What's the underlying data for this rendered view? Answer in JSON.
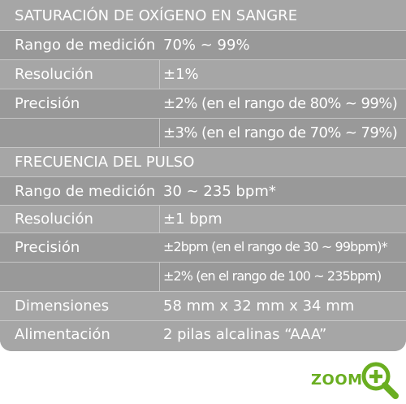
{
  "sections": [
    {
      "title": "SATURACIÓN DE OXÍGENO EN SANGRE",
      "rows": [
        {
          "label": "Rango de medición",
          "value": "70% ~ 99%"
        },
        {
          "label": "Resolución",
          "value": "±1%"
        },
        {
          "label": "Precisión",
          "value": "±2% (en el rango de 80% ~ 99%)"
        },
        {
          "label": "",
          "value": "±3% (en el rango de 70% ~ 79%)"
        }
      ]
    },
    {
      "title": "FRECUENCIA DEL PULSO",
      "rows": [
        {
          "label": "Rango de medición",
          "value": "30 ~ 235 bpm*"
        },
        {
          "label": "Resolución",
          "value": "±1 bpm"
        },
        {
          "label": "Precisión",
          "value": "±2bpm (en el rango de 30 ~ 99bpm)*"
        },
        {
          "label": "",
          "value": "±2% (en el rango de 100 ~ 235bpm)"
        }
      ]
    }
  ],
  "extra_rows": [
    {
      "label": "Dimensiones",
      "value": "58 mm x 32 mm x 34 mm"
    },
    {
      "label": "Alimentación",
      "value": "2 pilas alcalinas “AAA”"
    }
  ],
  "zoom": {
    "label": "ZOOM",
    "icon": "zoom-in-icon",
    "color": "#6aae21"
  }
}
